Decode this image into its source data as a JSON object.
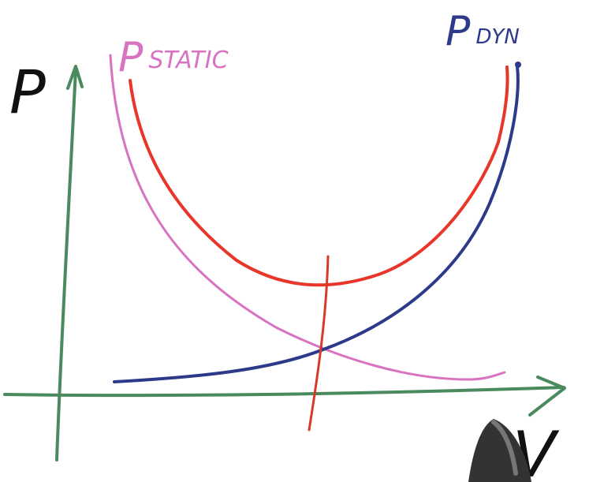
{
  "diagram": {
    "y_axis_label": "P",
    "x_axis_label": "V",
    "static_label": {
      "main": "P",
      "subscript": "STATIC"
    },
    "dynamic_label": {
      "main": "P",
      "subscript": "DYN"
    },
    "colors": {
      "axes": "#4a8a5e",
      "static_curve": "#d873c2",
      "dynamic_curve": "#2d3a8a",
      "total_curve": "#e8362a",
      "optimum_line": "#d83a2a",
      "text_black": "#111111",
      "pointer": "#333333"
    },
    "icons": {
      "pointer": "pointer-cursor-icon"
    }
  }
}
